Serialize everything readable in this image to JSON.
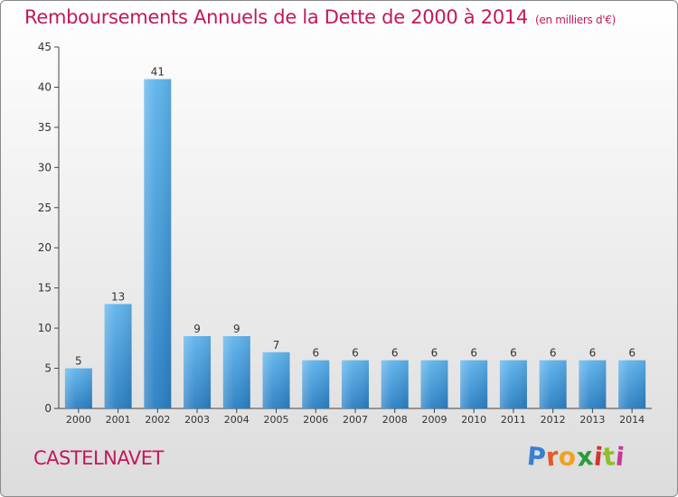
{
  "chart_data": {
    "type": "bar",
    "title": "Remboursements Annuels de la Dette de 2000 à 2014",
    "unit_note": "(en milliers d'€)",
    "categories": [
      "2000",
      "2001",
      "2002",
      "2003",
      "2004",
      "2005",
      "2006",
      "2007",
      "2008",
      "2009",
      "2010",
      "2011",
      "2012",
      "2013",
      "2014"
    ],
    "values": [
      5,
      13,
      41,
      9,
      9,
      7,
      6,
      6,
      6,
      6,
      6,
      6,
      6,
      6,
      6
    ],
    "ylim": [
      0,
      45
    ],
    "yticks": [
      0,
      5,
      10,
      15,
      20,
      25,
      30,
      35,
      40,
      45
    ],
    "xlabel": "",
    "ylabel": ""
  },
  "location": "CASTELNAVET",
  "brand": {
    "name": "Proxiti",
    "letter_colors": [
      "#3a7fd0",
      "#e35a2b",
      "#f2a21c",
      "#2e9a3a",
      "#d4332d",
      "#8fbf2a",
      "#c8389a"
    ]
  },
  "colors": {
    "title": "#c2185b",
    "bar_top": "#5fb4ec",
    "bar_bottom": "#2a7fc4",
    "axis": "#444444"
  }
}
